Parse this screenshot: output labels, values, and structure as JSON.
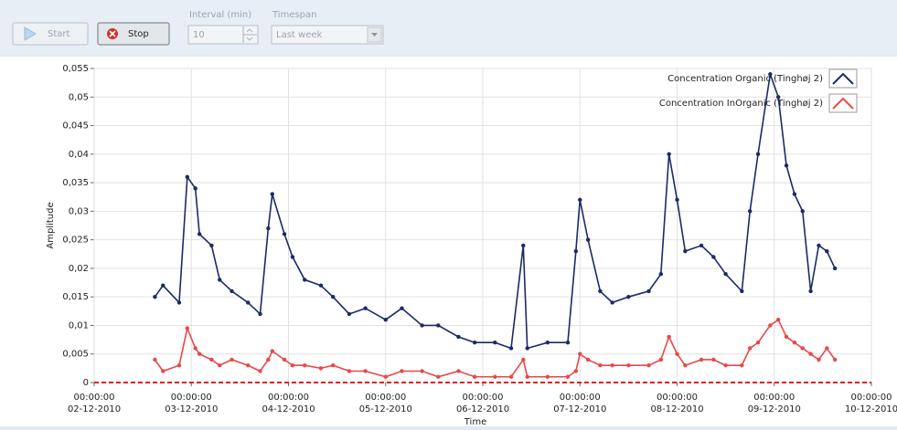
{
  "toolbar": {
    "start": "Start",
    "stop": "Stop",
    "interval_label": "Interval (min)",
    "interval_value": "10",
    "timespan_label": "Timespan",
    "timespan_value": "Last week"
  },
  "chart_data": {
    "type": "line",
    "xlabel": "Time",
    "ylabel": "Amplitude",
    "grid": true,
    "legend": "top-right",
    "x": [
      "2010-12-02T15:00",
      "2010-12-02T17:00",
      "2010-12-02T21:00",
      "2010-12-02T23:00",
      "2010-12-03T01:00",
      "2010-12-03T02:00",
      "2010-12-03T05:00",
      "2010-12-03T07:00",
      "2010-12-03T10:00",
      "2010-12-03T14:00",
      "2010-12-03T17:00",
      "2010-12-03T19:00",
      "2010-12-03T20:00",
      "2010-12-03T23:00",
      "2010-12-04T01:00",
      "2010-12-04T04:00",
      "2010-12-04T08:00",
      "2010-12-04T11:00",
      "2010-12-04T15:00",
      "2010-12-04T19:00",
      "2010-12-05T00:00",
      "2010-12-05T04:00",
      "2010-12-05T09:00",
      "2010-12-05T13:00",
      "2010-12-05T18:00",
      "2010-12-05T22:00",
      "2010-12-06T03:00",
      "2010-12-06T07:00",
      "2010-12-06T10:00",
      "2010-12-06T11:00",
      "2010-12-06T16:00",
      "2010-12-06T21:00",
      "2010-12-06T23:00",
      "2010-12-07T00:00",
      "2010-12-07T02:00",
      "2010-12-07T05:00",
      "2010-12-07T08:00",
      "2010-12-07T12:00",
      "2010-12-07T17:00",
      "2010-12-07T20:00",
      "2010-12-07T22:00",
      "2010-12-08T00:00",
      "2010-12-08T02:00",
      "2010-12-08T06:00",
      "2010-12-08T09:00",
      "2010-12-08T12:00",
      "2010-12-08T16:00",
      "2010-12-08T18:00",
      "2010-12-08T20:00",
      "2010-12-08T23:00",
      "2010-12-09T01:00",
      "2010-12-09T03:00",
      "2010-12-09T05:00",
      "2010-12-09T07:00",
      "2010-12-09T09:00",
      "2010-12-09T11:00",
      "2010-12-09T13:00",
      "2010-12-09T15:00"
    ],
    "series": [
      {
        "name": "Concentration Organic (Tinghøj 2)",
        "color": "#1b2a66",
        "values": [
          0.015,
          0.017,
          0.014,
          0.036,
          0.034,
          0.026,
          0.024,
          0.018,
          0.016,
          0.014,
          0.012,
          0.027,
          0.033,
          0.026,
          0.022,
          0.018,
          0.017,
          0.015,
          0.012,
          0.013,
          0.011,
          0.013,
          0.01,
          0.01,
          0.008,
          0.007,
          0.007,
          0.006,
          0.024,
          0.006,
          0.007,
          0.007,
          0.023,
          0.032,
          0.025,
          0.016,
          0.014,
          0.015,
          0.016,
          0.019,
          0.04,
          0.032,
          0.023,
          0.024,
          0.022,
          0.019,
          0.016,
          0.03,
          0.04,
          0.054,
          0.05,
          0.038,
          0.033,
          0.03,
          0.016,
          0.024,
          0.023,
          0.02
        ]
      },
      {
        "name": "Concentration InOrganic (Tinghøj 2)",
        "color": "#e84848",
        "values": [
          0.004,
          0.002,
          0.003,
          0.0095,
          0.006,
          0.005,
          0.004,
          0.003,
          0.004,
          0.003,
          0.002,
          0.004,
          0.0055,
          0.004,
          0.003,
          0.003,
          0.0025,
          0.003,
          0.002,
          0.002,
          0.001,
          0.002,
          0.002,
          0.001,
          0.002,
          0.001,
          0.001,
          0.001,
          0.004,
          0.001,
          0.001,
          0.001,
          0.002,
          0.005,
          0.004,
          0.003,
          0.003,
          0.003,
          0.003,
          0.004,
          0.008,
          0.005,
          0.003,
          0.004,
          0.004,
          0.003,
          0.003,
          0.006,
          0.007,
          0.01,
          0.011,
          0.008,
          0.007,
          0.006,
          0.005,
          0.004,
          0.006,
          0.004
        ]
      }
    ],
    "xlim": [
      "2010-12-02T00:00",
      "2010-12-10T00:00"
    ],
    "xticks": [
      {
        "value": "2010-12-02T00:00",
        "label": "00:00:00",
        "date": "02-12-2010"
      },
      {
        "value": "2010-12-03T00:00",
        "label": "00:00:00",
        "date": "03-12-2010"
      },
      {
        "value": "2010-12-04T00:00",
        "label": "00:00:00",
        "date": "04-12-2010"
      },
      {
        "value": "2010-12-05T00:00",
        "label": "00:00:00",
        "date": "05-12-2010"
      },
      {
        "value": "2010-12-06T00:00",
        "label": "00:00:00",
        "date": "06-12-2010"
      },
      {
        "value": "2010-12-07T00:00",
        "label": "00:00:00",
        "date": "07-12-2010"
      },
      {
        "value": "2010-12-08T00:00",
        "label": "00:00:00",
        "date": "08-12-2010"
      },
      {
        "value": "2010-12-09T00:00",
        "label": "00:00:00",
        "date": "09-12-2010"
      },
      {
        "value": "2010-12-10T00:00",
        "label": "00:00:00",
        "date": "10-12-2010"
      }
    ],
    "ylim": [
      0,
      0.055
    ],
    "yticks": [
      0,
      {
        "value": 0.005,
        "label": "0,005"
      },
      {
        "value": 0.01,
        "label": "0,01"
      },
      {
        "value": 0.015,
        "label": "0,015"
      },
      {
        "value": 0.02,
        "label": "0,02"
      },
      {
        "value": 0.025,
        "label": "0,025"
      },
      {
        "value": 0.03,
        "label": "0,03"
      },
      {
        "value": 0.035,
        "label": "0,035"
      },
      {
        "value": 0.04,
        "label": "0,04"
      },
      {
        "value": 0.045,
        "label": "0,045"
      },
      {
        "value": 0.05,
        "label": "0,05"
      },
      {
        "value": 0.055,
        "label": "0,055"
      }
    ]
  }
}
